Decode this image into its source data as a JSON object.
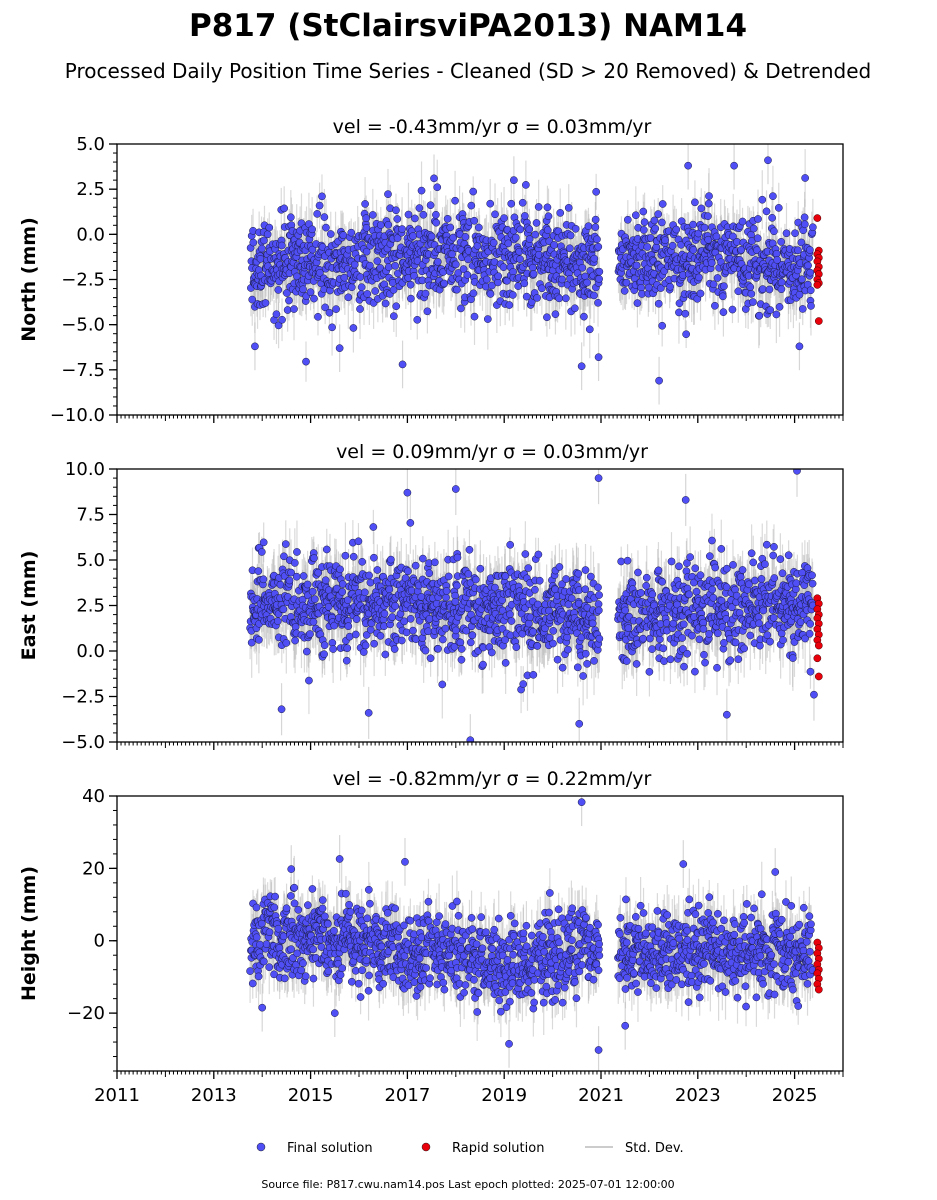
{
  "title": "P817 (StClairsviPA2013) NAM14",
  "subtitle": "Processed Daily Position Time Series - Cleaned (SD > 20 Removed) & Detrended",
  "footer": "Source file: P817.cwu.nam14.pos  Last epoch plotted: 2025-07-01 12:00:00",
  "legend": {
    "final": "Final solution",
    "rapid": "Rapid solution",
    "sd": "Std. Dev."
  },
  "colors": {
    "final": "#4f4ff5",
    "rapid": "#e8000b",
    "sd": "#bbbbbb"
  },
  "chart_data": [
    {
      "type": "scatter",
      "panel": "north",
      "title": "vel = -0.43mm/yr   σ = 0.03mm/yr",
      "ylabel": "North (mm)",
      "xlim": [
        2011,
        2026
      ],
      "ylim": [
        -10,
        5
      ],
      "yticks": [
        5.0,
        2.5,
        0.0,
        -2.5,
        -5.0,
        -7.5,
        -10.0
      ],
      "ytick_labels": [
        "5.0",
        "2.5",
        "0.0",
        "−2.5",
        "−5.0",
        "−7.5",
        "−10.0"
      ],
      "data_start": 2013.75,
      "gap": [
        2020.97,
        2021.35
      ],
      "rapid_start": 2025.38,
      "data_end": 2025.5,
      "final_level": [
        [
          2013.75,
          -1.8
        ],
        [
          2016,
          -1.4
        ],
        [
          2018,
          -1.0
        ],
        [
          2019.5,
          -1.3
        ],
        [
          2021,
          -1.7
        ],
        [
          2023,
          -1.3
        ],
        [
          2025.4,
          -1.8
        ]
      ],
      "final_spread": 1.3,
      "sd_level": 1.2,
      "rapid_values": [
        0.9,
        -0.9,
        -1.1,
        -1.3,
        -1.5,
        -1.8,
        -2.0,
        -2.2,
        -2.5,
        -2.7,
        -2.8,
        -4.8
      ],
      "outliers": [
        {
          "x": 2019.2,
          "y": 3.0
        },
        {
          "x": 2022.8,
          "y": 3.8
        },
        {
          "x": 2023.75,
          "y": 3.8
        },
        {
          "x": 2024.45,
          "y": 4.1
        },
        {
          "x": 2017.55,
          "y": 3.1
        },
        {
          "x": 2020.6,
          "y": -7.3
        },
        {
          "x": 2022.2,
          "y": -8.1
        },
        {
          "x": 2016.9,
          "y": -7.2
        },
        {
          "x": 2020.95,
          "y": -6.8
        },
        {
          "x": 2013.85,
          "y": -6.2
        },
        {
          "x": 2015.6,
          "y": -6.3
        },
        {
          "x": 2025.1,
          "y": -6.2
        }
      ]
    },
    {
      "type": "scatter",
      "panel": "east",
      "title": "vel = 0.09mm/yr   σ = 0.03mm/yr",
      "ylabel": "East (mm)",
      "xlim": [
        2011,
        2026
      ],
      "ylim": [
        -5,
        10
      ],
      "yticks": [
        10.0,
        7.5,
        5.0,
        2.5,
        0.0,
        -2.5,
        -5.0
      ],
      "ytick_labels": [
        "10.0",
        "7.5",
        "5.0",
        "2.5",
        "0.0",
        "−2.5",
        "−5.0"
      ],
      "data_start": 2013.75,
      "gap": [
        2020.97,
        2021.35
      ],
      "rapid_start": 2025.38,
      "data_end": 2025.5,
      "final_level": [
        [
          2013.75,
          2.5
        ],
        [
          2016,
          2.6
        ],
        [
          2018,
          2.3
        ],
        [
          2020,
          2.0
        ],
        [
          2022,
          1.9
        ],
        [
          2024,
          2.6
        ],
        [
          2025.4,
          2.8
        ]
      ],
      "final_spread": 1.3,
      "sd_level": 1.3,
      "rapid_values": [
        2.9,
        2.6,
        2.3,
        2.0,
        1.8,
        1.5,
        1.2,
        0.9,
        0.6,
        0.3,
        -0.4,
        -1.4
      ],
      "outliers": [
        {
          "x": 2020.95,
          "y": 9.5
        },
        {
          "x": 2025.05,
          "y": 9.9
        },
        {
          "x": 2017.0,
          "y": 8.7
        },
        {
          "x": 2018.0,
          "y": 8.9
        },
        {
          "x": 2022.75,
          "y": 8.3
        },
        {
          "x": 2018.3,
          "y": -4.9
        },
        {
          "x": 2014.4,
          "y": -3.2
        },
        {
          "x": 2016.2,
          "y": -3.4
        },
        {
          "x": 2020.55,
          "y": -4.0
        },
        {
          "x": 2023.6,
          "y": -3.5
        },
        {
          "x": 2025.4,
          "y": -2.4
        }
      ]
    },
    {
      "type": "scatter",
      "panel": "height",
      "title": "vel = -0.82mm/yr   σ = 0.22mm/yr",
      "ylabel": "Height (mm)",
      "xlim": [
        2011,
        2026
      ],
      "ylim": [
        -36,
        40
      ],
      "yticks": [
        40,
        20,
        0,
        -20
      ],
      "ytick_labels": [
        "40",
        "20",
        "0",
        "−20"
      ],
      "xticks": [
        2011,
        2013,
        2015,
        2017,
        2019,
        2021,
        2023,
        2025
      ],
      "xtick_labels": [
        "2011",
        "2013",
        "2015",
        "2017",
        "2019",
        "2021",
        "2023",
        "2025"
      ],
      "data_start": 2013.75,
      "gap": [
        2020.97,
        2021.35
      ],
      "rapid_start": 2025.38,
      "data_end": 2025.5,
      "final_level": [
        [
          2013.75,
          0.5
        ],
        [
          2015,
          0.5
        ],
        [
          2016.5,
          -2
        ],
        [
          2018.5,
          -5
        ],
        [
          2019.2,
          -8
        ],
        [
          2020.5,
          -2
        ],
        [
          2021.4,
          -4
        ],
        [
          2023,
          -2
        ],
        [
          2025.4,
          -4
        ]
      ],
      "final_spread": 5.5,
      "sd_level": 6,
      "rapid_values": [
        -0.5,
        -2.0,
        -3.5,
        -5.0,
        -6.5,
        -8.0,
        -9.0,
        -10.5,
        -12.0,
        -13.5
      ],
      "outliers": [
        {
          "x": 2020.6,
          "y": 38.3
        },
        {
          "x": 2015.6,
          "y": 22.6
        },
        {
          "x": 2016.95,
          "y": 21.8
        },
        {
          "x": 2022.7,
          "y": 21.2
        },
        {
          "x": 2014.6,
          "y": 19.8
        },
        {
          "x": 2024.6,
          "y": 19.0
        },
        {
          "x": 2020.95,
          "y": -30.2
        },
        {
          "x": 2019.1,
          "y": -28.5
        },
        {
          "x": 2014.0,
          "y": -18.5
        },
        {
          "x": 2015.5,
          "y": -20.0
        },
        {
          "x": 2021.5,
          "y": -23.5
        }
      ]
    }
  ]
}
